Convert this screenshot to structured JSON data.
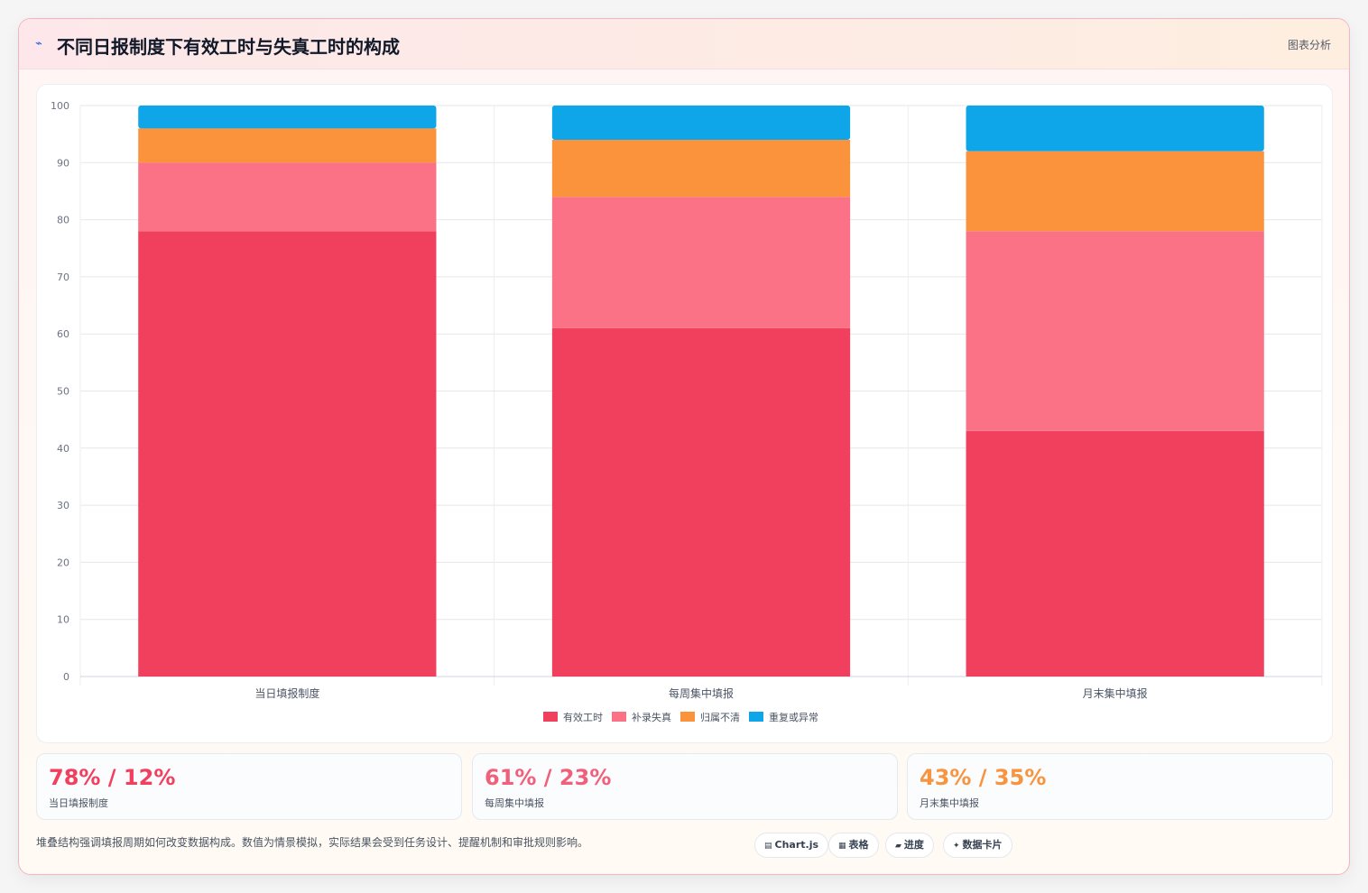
{
  "header": {
    "icon": "trend-icon",
    "title": "不同日报制度下有效工时与失真工时的构成",
    "tag": "图表分析"
  },
  "chart_data": {
    "type": "bar",
    "stacked": true,
    "categories": [
      "当日填报制度",
      "每周集中填报",
      "月末集中填报"
    ],
    "series": [
      {
        "name": "有效工时",
        "color": "#f1405e",
        "values": [
          78,
          61,
          43
        ]
      },
      {
        "name": "补录失真",
        "color": "#fb7185",
        "values": [
          12,
          23,
          35
        ]
      },
      {
        "name": "归属不清",
        "color": "#fb923c",
        "values": [
          6,
          10,
          14
        ]
      },
      {
        "name": "重复或异常",
        "color": "#0ea5e9",
        "values": [
          4,
          6,
          8
        ]
      }
    ],
    "ylim": [
      0,
      100
    ],
    "yticks": [
      0,
      10,
      20,
      30,
      40,
      50,
      60,
      70,
      80,
      90,
      100
    ],
    "grid": true,
    "legend_position": "bottom"
  },
  "stats": [
    {
      "value": "78% / 12%",
      "label": "当日填报制度",
      "color": "#f1405e"
    },
    {
      "value": "61% / 23%",
      "label": "每周集中填报",
      "color": "#f0607a"
    },
    {
      "value": "43% / 35%",
      "label": "月末集中填报",
      "color": "#f7943f"
    }
  ],
  "footnote": "堆叠结构强调填报周期如何改变数据构成。数值为情景模拟，实际结果会受到任务设计、提醒机制和审批规则影响。",
  "chips": [
    {
      "icon": "chart-icon",
      "glyph": "▤",
      "label": "Chart.js"
    },
    {
      "icon": "table-icon",
      "glyph": "▦",
      "label": "表格"
    },
    {
      "icon": "progress-icon",
      "glyph": "▰",
      "label": "进度"
    },
    {
      "icon": "sparkle-icon",
      "glyph": "✦",
      "label": "数据卡片"
    }
  ]
}
